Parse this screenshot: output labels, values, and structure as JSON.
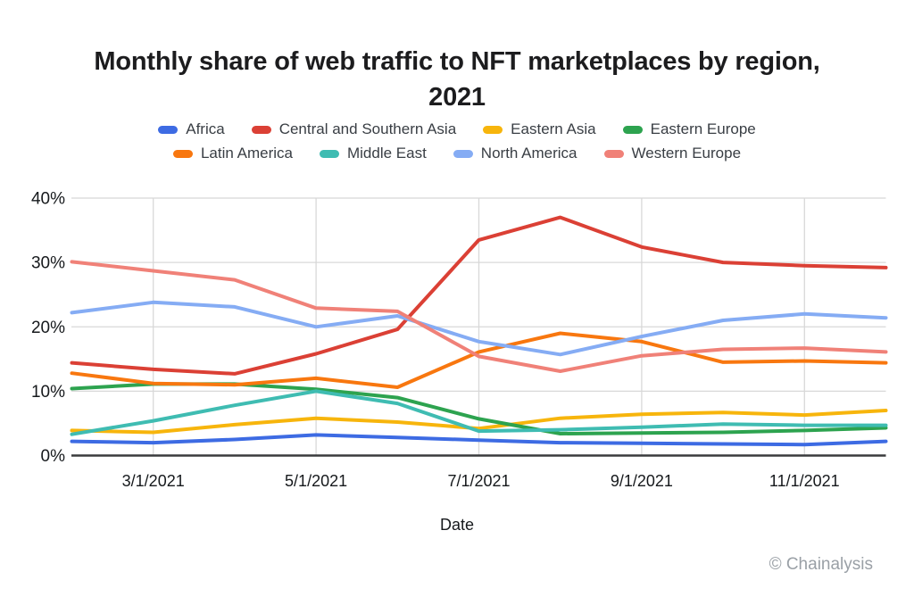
{
  "title": {
    "line1": "Monthly share of web traffic to NFT marketplaces by region,",
    "line2": "2021"
  },
  "attribution": "© Chainalysis",
  "chart_data": {
    "type": "line",
    "title": "Monthly share of web traffic to NFT marketplaces by region, 2021",
    "xlabel": "Date",
    "ylabel": "",
    "x": [
      "2/1/2021",
      "3/1/2021",
      "4/1/2021",
      "5/1/2021",
      "6/1/2021",
      "7/1/2021",
      "8/1/2021",
      "9/1/2021",
      "10/1/2021",
      "11/1/2021",
      "12/1/2021"
    ],
    "x_ticks_shown": [
      "3/1/2021",
      "5/1/2021",
      "7/1/2021",
      "9/1/2021",
      "11/1/2021"
    ],
    "y_ticks": [
      0,
      10,
      20,
      30,
      40
    ],
    "y_tick_suffix": "%",
    "ylim": [
      0,
      40
    ],
    "grid": true,
    "legend_position": "top",
    "colors": {
      "gridline": "#d8d8d8",
      "axis_line": "#3a3b3d",
      "tick_text": "#16191c",
      "legend_text": "#393e44",
      "attribution_text": "#9aa0a6"
    },
    "series": [
      {
        "name": "Africa",
        "color": "#3d6be3",
        "values": [
          2.2,
          2.0,
          2.5,
          3.2,
          2.8,
          2.4,
          2.0,
          1.9,
          1.8,
          1.7,
          2.2
        ]
      },
      {
        "name": "Central and Southern Asia",
        "color": "#db4035",
        "values": [
          14.4,
          13.4,
          12.7,
          15.8,
          19.6,
          33.5,
          37.0,
          32.4,
          30.0,
          29.5,
          29.2
        ]
      },
      {
        "name": "Eastern Asia",
        "color": "#f7b50c",
        "values": [
          3.9,
          3.6,
          4.8,
          5.8,
          5.2,
          4.2,
          5.8,
          6.4,
          6.7,
          6.3,
          7.0
        ]
      },
      {
        "name": "Eastern Europe",
        "color": "#2da34f",
        "values": [
          10.4,
          11.1,
          11.1,
          10.3,
          9.0,
          5.7,
          3.4,
          3.5,
          3.6,
          3.9,
          4.3
        ]
      },
      {
        "name": "Latin America",
        "color": "#f8770f",
        "values": [
          12.8,
          11.2,
          11.0,
          12.0,
          10.6,
          16.1,
          19.0,
          17.7,
          14.5,
          14.7,
          14.4
        ]
      },
      {
        "name": "Middle East",
        "color": "#3fbcb2",
        "values": [
          3.3,
          5.4,
          7.8,
          10.0,
          8.1,
          3.8,
          4.0,
          4.4,
          4.9,
          4.7,
          4.7
        ]
      },
      {
        "name": "North America",
        "color": "#85acf4",
        "values": [
          22.2,
          23.8,
          23.1,
          20.0,
          21.7,
          17.7,
          15.7,
          18.5,
          21.0,
          22.0,
          21.4
        ]
      },
      {
        "name": "Western Europe",
        "color": "#f08178",
        "values": [
          30.1,
          28.7,
          27.3,
          22.9,
          22.4,
          15.4,
          13.1,
          15.5,
          16.5,
          16.7,
          16.1
        ]
      }
    ]
  }
}
